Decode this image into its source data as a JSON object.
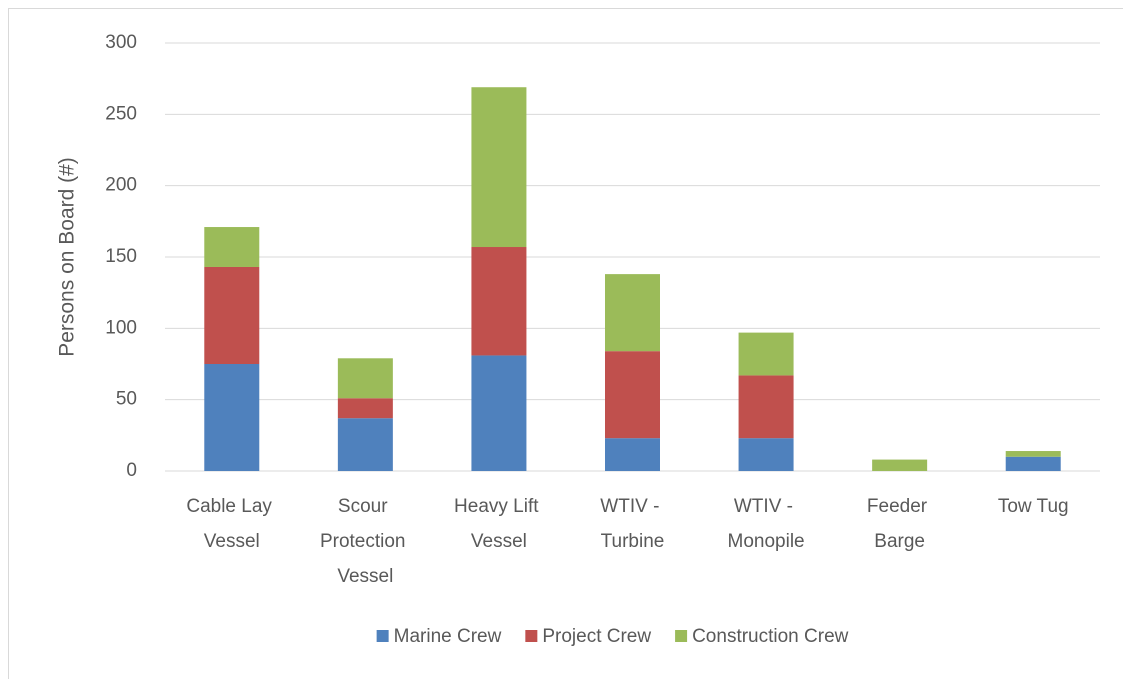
{
  "chart_data": {
    "type": "stacked_bar",
    "ylabel": "Persons on Board (#)",
    "categories": [
      "Cable Lay Vessel",
      "Scour Protection Vessel",
      "Heavy Lift Vessel",
      "WTIV - Turbine",
      "WTIV - Monopile",
      "Feeder Barge",
      "Tow Tug"
    ],
    "series": [
      {
        "name": "Marine Crew",
        "color": "#4f81bd",
        "values": [
          75,
          37,
          81,
          23,
          23,
          0,
          10
        ]
      },
      {
        "name": "Project Crew",
        "color": "#c0504d",
        "values": [
          68,
          14,
          76,
          61,
          44,
          0,
          0
        ]
      },
      {
        "name": "Construction Crew",
        "color": "#9bbb59",
        "values": [
          28,
          28,
          112,
          54,
          30,
          8,
          4
        ]
      }
    ],
    "ylim": [
      0,
      300
    ],
    "yticks": [
      0,
      50,
      100,
      150,
      200,
      250,
      300
    ],
    "grid": true,
    "legend": "bottom"
  }
}
